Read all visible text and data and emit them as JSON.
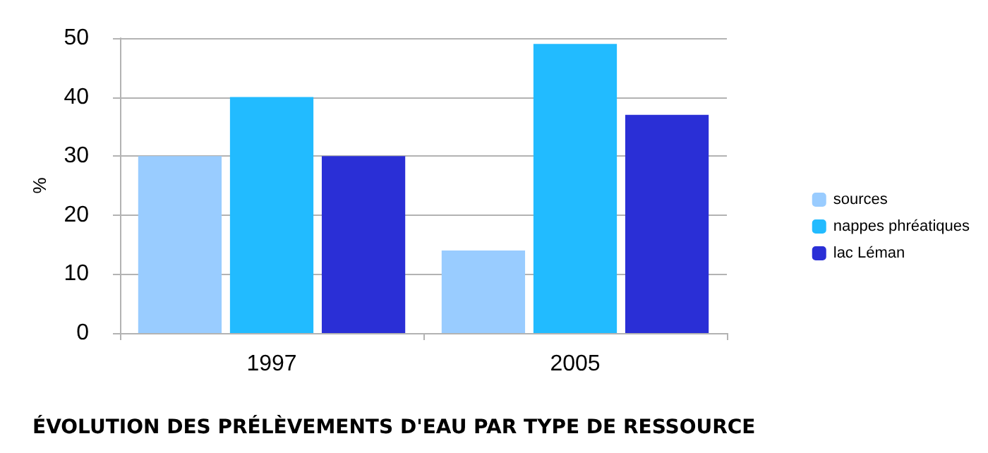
{
  "chart_data": {
    "type": "bar",
    "title": "ÉVOLUTION DES PRÉLÈVEMENTS D'EAU PAR TYPE DE RESSOURCE",
    "ylabel": "%",
    "categories": [
      "1997",
      "2005"
    ],
    "series": [
      {
        "name": "sources",
        "color": "#99ccff",
        "values": [
          30,
          14
        ]
      },
      {
        "name": "nappes phréatiques",
        "color": "#22bbff",
        "values": [
          40,
          49
        ]
      },
      {
        "name": "lac Léman",
        "color": "#2a2fd6",
        "values": [
          30,
          37
        ]
      }
    ],
    "ylim": [
      0,
      50
    ],
    "yticks": [
      0,
      10,
      20,
      30,
      40,
      50
    ],
    "grid": "y",
    "legend": "right"
  }
}
